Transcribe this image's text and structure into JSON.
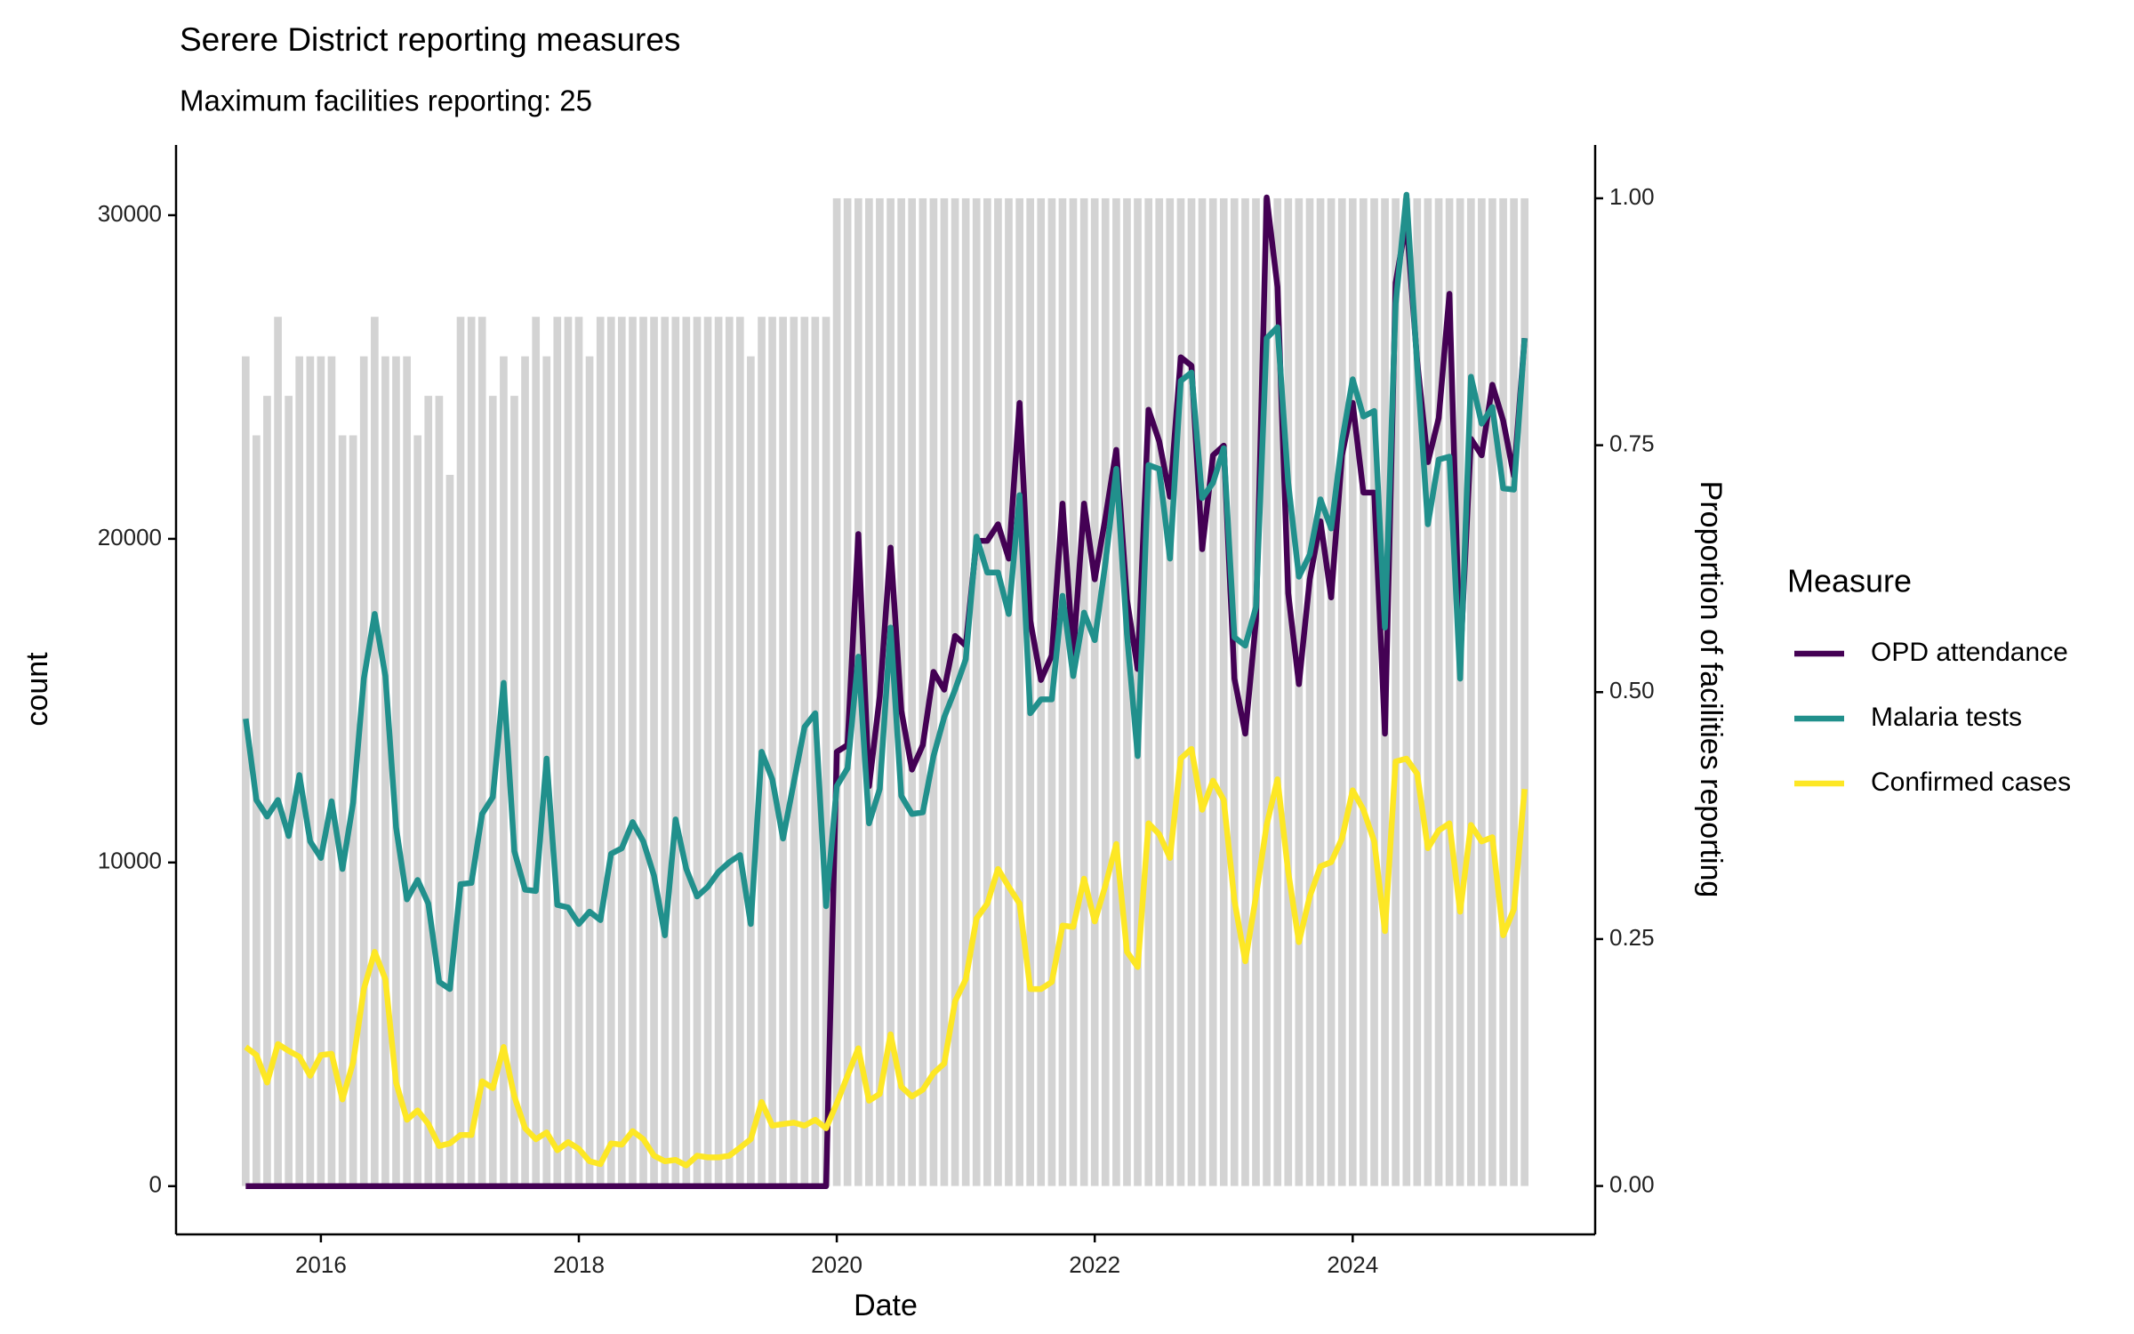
{
  "chart_data": {
    "type": "line",
    "title": "Serere District reporting measures",
    "subtitle": "Maximum facilities reporting: 25",
    "x_label": "Date",
    "y_label": "count",
    "y2_label": "Proportion of facilities reporting",
    "legend_title": "Measure",
    "legend_position": "right",
    "grid": false,
    "xlim": [
      2014.877,
      2025.88
    ],
    "xticks": [
      2016,
      2018,
      2020,
      2022,
      2024
    ],
    "ylim": [
      -1491,
      32170
    ],
    "yticks": [
      0,
      10000,
      20000,
      30000
    ],
    "y2lim": [
      -0.049,
      1.054
    ],
    "y2ticks": [
      {
        "value": 0,
        "label": "0.00"
      },
      {
        "value": 0.25,
        "label": "0.25"
      },
      {
        "value": 0.5,
        "label": "0.50"
      },
      {
        "value": 0.75,
        "label": "0.75"
      },
      {
        "value": 1,
        "label": "1.00"
      }
    ],
    "x": [
      2015.417,
      2015.5,
      2015.583,
      2015.667,
      2015.75,
      2015.833,
      2015.917,
      2016,
      2016.083,
      2016.167,
      2016.25,
      2016.333,
      2016.417,
      2016.5,
      2016.583,
      2016.667,
      2016.75,
      2016.833,
      2016.917,
      2017,
      2017.083,
      2017.167,
      2017.25,
      2017.333,
      2017.417,
      2017.5,
      2017.583,
      2017.667,
      2017.75,
      2017.833,
      2017.917,
      2018,
      2018.083,
      2018.167,
      2018.25,
      2018.333,
      2018.417,
      2018.5,
      2018.583,
      2018.667,
      2018.75,
      2018.833,
      2018.917,
      2019,
      2019.083,
      2019.167,
      2019.25,
      2019.333,
      2019.417,
      2019.5,
      2019.583,
      2019.667,
      2019.75,
      2019.833,
      2019.917,
      2020,
      2020.083,
      2020.167,
      2020.25,
      2020.333,
      2020.417,
      2020.5,
      2020.583,
      2020.667,
      2020.75,
      2020.833,
      2020.917,
      2021,
      2021.083,
      2021.167,
      2021.25,
      2021.333,
      2021.417,
      2021.5,
      2021.583,
      2021.667,
      2021.75,
      2021.833,
      2021.917,
      2022,
      2022.083,
      2022.167,
      2022.25,
      2022.333,
      2022.417,
      2022.5,
      2022.583,
      2022.667,
      2022.75,
      2022.833,
      2022.917,
      2023,
      2023.083,
      2023.167,
      2023.25,
      2023.333,
      2023.417,
      2023.5,
      2023.583,
      2023.667,
      2023.75,
      2023.833,
      2023.917,
      2024,
      2024.083,
      2024.167,
      2024.25,
      2024.333,
      2024.417,
      2024.5,
      2024.583,
      2024.667,
      2024.75,
      2024.833,
      2024.917,
      2025,
      2025.083,
      2025.167,
      2025.25,
      2025.333
    ],
    "bar_series": {
      "axis": "y2",
      "color": "#d3d3d3",
      "values": [
        0.84,
        0.76,
        0.8,
        0.88,
        0.8,
        0.84,
        0.84,
        0.84,
        0.84,
        0.76,
        0.76,
        0.84,
        0.88,
        0.84,
        0.84,
        0.84,
        0.76,
        0.8,
        0.8,
        0.72,
        0.88,
        0.88,
        0.88,
        0.8,
        0.84,
        0.8,
        0.84,
        0.88,
        0.84,
        0.88,
        0.88,
        0.88,
        0.84,
        0.88,
        0.88,
        0.88,
        0.88,
        0.88,
        0.88,
        0.88,
        0.88,
        0.88,
        0.88,
        0.88,
        0.88,
        0.88,
        0.88,
        0.84,
        0.88,
        0.88,
        0.88,
        0.88,
        0.88,
        0.88,
        0.88,
        1,
        1,
        1,
        1,
        1,
        1,
        1,
        1,
        1,
        1,
        1,
        1,
        1,
        1,
        1,
        1,
        1,
        1,
        1,
        1,
        1,
        1,
        1,
        1,
        1,
        1,
        1,
        1,
        1,
        1,
        1,
        1,
        1,
        1,
        1,
        1,
        1,
        1,
        1,
        1,
        1,
        1,
        1,
        1,
        1,
        1,
        1,
        1,
        1,
        1,
        1,
        1,
        1,
        1,
        1,
        1,
        1,
        1,
        1,
        1,
        1,
        1,
        1,
        1,
        1
      ]
    },
    "series": [
      {
        "name": "OPD attendance",
        "color": "#440154",
        "values": [
          0,
          0,
          0,
          0,
          0,
          0,
          0,
          0,
          0,
          0,
          0,
          0,
          0,
          0,
          0,
          0,
          0,
          0,
          0,
          0,
          0,
          0,
          0,
          0,
          0,
          0,
          0,
          0,
          0,
          0,
          0,
          0,
          0,
          0,
          0,
          0,
          0,
          0,
          0,
          0,
          0,
          0,
          0,
          0,
          0,
          0,
          0,
          0,
          0,
          0,
          0,
          0,
          0,
          0,
          0,
          13420,
          13630,
          20150,
          12360,
          15130,
          19730,
          14700,
          12870,
          13630,
          15890,
          15340,
          17000,
          16700,
          19940,
          19940,
          20450,
          19390,
          24200,
          17470,
          15640,
          16400,
          21090,
          16400,
          21090,
          18750,
          20660,
          22750,
          18110,
          15980,
          23990,
          23010,
          21300,
          25610,
          25350,
          19680,
          22580,
          22880,
          15680,
          13980,
          17470,
          30550,
          27780,
          18320,
          15510,
          18750,
          20540,
          18190,
          22580,
          24200,
          21430,
          21430,
          13980,
          27910,
          29830,
          25480,
          22370,
          23730,
          27570,
          16190,
          23090,
          22580,
          24760,
          23650,
          21940,
          26200
        ]
      },
      {
        "name": "Malaria tests",
        "color": "#21908c",
        "values": [
          14440,
          11930,
          11420,
          11930,
          10820,
          12700,
          10650,
          10140,
          11890,
          9800,
          11850,
          15680,
          17680,
          15760,
          11080,
          8860,
          9460,
          8730,
          6310,
          6090,
          9330,
          9370,
          11500,
          12020,
          15550,
          10350,
          9160,
          9120,
          13210,
          8690,
          8610,
          8100,
          8480,
          8220,
          10270,
          10440,
          11250,
          10650,
          9590,
          7750,
          11330,
          9800,
          8950,
          9250,
          9710,
          10010,
          10230,
          8100,
          13420,
          12570,
          10740,
          12480,
          14190,
          14610,
          8650,
          12360,
          12910,
          16360,
          11210,
          12270,
          17260,
          12060,
          11500,
          11550,
          13290,
          14490,
          15340,
          16280,
          20070,
          18960,
          18960,
          17680,
          21350,
          14610,
          15040,
          15040,
          18240,
          15760,
          17720,
          16870,
          19260,
          22160,
          17040,
          13290,
          22280,
          22160,
          19390,
          24880,
          25140,
          21260,
          21730,
          22800,
          16960,
          16700,
          17890,
          26200,
          26540,
          21730,
          18830,
          19510,
          21220,
          20320,
          23010,
          24930,
          23780,
          23950,
          17260,
          27270,
          30630,
          25350,
          20450,
          22450,
          22540,
          15680,
          25010,
          23560,
          24070,
          21560,
          21520,
          26200
        ]
      },
      {
        "name": "Confirmed cases",
        "color": "#fde725",
        "values": [
          4300,
          4050,
          3200,
          4390,
          4180,
          4000,
          3410,
          4050,
          4090,
          2680,
          3830,
          6090,
          7240,
          6390,
          3200,
          2050,
          2340,
          1920,
          1240,
          1320,
          1580,
          1580,
          3240,
          3030,
          4300,
          2770,
          1790,
          1450,
          1660,
          1110,
          1360,
          1150,
          770,
          680,
          1320,
          1280,
          1700,
          1450,
          940,
          770,
          810,
          640,
          940,
          890,
          890,
          940,
          1190,
          1450,
          2600,
          1870,
          1920,
          1960,
          1870,
          2050,
          1790,
          2560,
          3410,
          4260,
          2640,
          2850,
          4690,
          3070,
          2770,
          2980,
          3490,
          3790,
          5710,
          6390,
          8270,
          8730,
          9800,
          9250,
          8730,
          6090,
          6090,
          6310,
          8050,
          8010,
          9500,
          8180,
          9290,
          10570,
          7240,
          6770,
          11210,
          10870,
          10140,
          13210,
          13510,
          11630,
          12530,
          11930,
          8820,
          6950,
          8950,
          11160,
          12570,
          9710,
          7540,
          8950,
          9880,
          10010,
          10740,
          12230,
          11630,
          10650,
          7880,
          13120,
          13210,
          12740,
          10440,
          10990,
          11210,
          8480,
          11160,
          10650,
          10780,
          7750,
          8560,
          12270
        ]
      }
    ]
  }
}
